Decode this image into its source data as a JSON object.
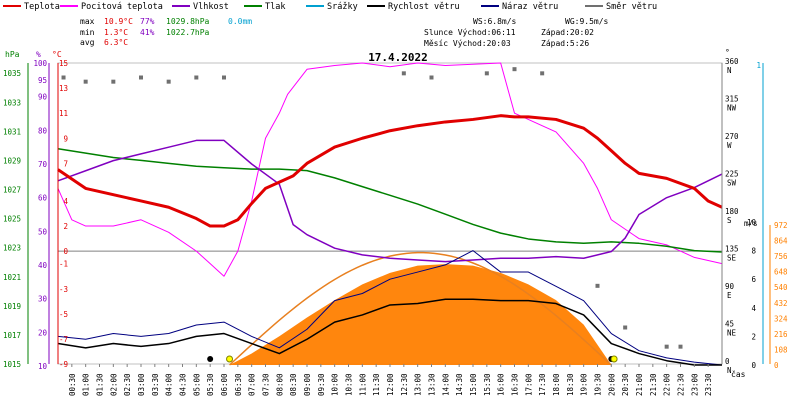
{
  "chart_data": {
    "type": "line",
    "title": "17.4.2022",
    "legend": [
      {
        "name": "Teplota",
        "color": "#e00000"
      },
      {
        "name": "Pocitová teplota",
        "color": "#ff00ff"
      },
      {
        "name": "Vlhkost",
        "color": "#8000c0"
      },
      {
        "name": "Tlak",
        "color": "#008000"
      },
      {
        "name": "Srážky",
        "color": "#00a0d0"
      },
      {
        "name": "Rychlost větru",
        "color": "#000000"
      },
      {
        "name": "Náraz větru",
        "color": "#000080"
      },
      {
        "name": "Směr větru",
        "color": "#707070"
      }
    ],
    "stats": {
      "max_label": "max",
      "min_label": "min",
      "avg_label": "avg",
      "max_temp": "10.9°C",
      "max_hum": "77%",
      "max_press": "1029.8hPa",
      "max_rain": "0.0mm",
      "min_temp": "1.3°C",
      "min_hum": "41%",
      "min_press": "1022.7hPa",
      "avg_temp": "6.3°C"
    },
    "wind_info": {
      "ws": "WS:6.8m/s",
      "wg": "WG:9.5m/s"
    },
    "sun_info": {
      "line1_left": "Slunce Východ:06:11",
      "line1_right": "Západ:20:02",
      "line2_left": "Měsíc  Východ:20:03",
      "line2_right": "Západ:5:26"
    },
    "axes": {
      "hpa_unit": "hPa",
      "pct_unit": "%",
      "degc_unit": "°C",
      "hpa_ticks": [
        1015,
        1017,
        1019,
        1021,
        1023,
        1025,
        1027,
        1029,
        1031,
        1033,
        1035
      ],
      "pct_ticks": [
        10,
        20,
        30,
        40,
        50,
        60,
        70,
        80,
        90,
        95,
        100
      ],
      "pct_ticks_labels": [
        "10",
        "20",
        "30",
        "40",
        "50",
        "60",
        "70",
        "80",
        "90",
        "95",
        "100"
      ],
      "temp_ticks": [
        -9,
        -7,
        -5,
        -3,
        -1,
        0,
        2,
        4,
        7,
        9,
        11,
        13,
        15
      ],
      "deg_unit": "°",
      "dir_ticks": [
        {
          "deg": 0,
          "label": "0",
          "dir": "N"
        },
        {
          "deg": 45,
          "label": "45",
          "dir": "NE"
        },
        {
          "deg": 90,
          "label": "90",
          "dir": "E"
        },
        {
          "deg": 135,
          "label": "135",
          "dir": "SE"
        },
        {
          "deg": 180,
          "label": "180",
          "dir": "S"
        },
        {
          "deg": 225,
          "label": "225",
          "dir": "SW"
        },
        {
          "deg": 270,
          "label": "270",
          "dir": "W"
        },
        {
          "deg": 315,
          "label": "315",
          "dir": "NW"
        },
        {
          "deg": 360,
          "label": "360",
          "dir": "N"
        }
      ],
      "ms_unit": "m/s",
      "ms_ticks": [
        0,
        2,
        4,
        6,
        8,
        10
      ],
      "wm2_ticks": [
        0,
        108,
        216,
        324,
        432,
        540,
        648,
        756,
        864,
        972
      ],
      "mm_ticks": [
        "1"
      ],
      "x_ticks": [
        "00:30",
        "01:00",
        "01:30",
        "02:00",
        "02:30",
        "03:00",
        "03:30",
        "04:00",
        "04:30",
        "05:00",
        "05:30",
        "06:00",
        "06:30",
        "07:00",
        "07:30",
        "08:00",
        "08:30",
        "09:00",
        "09:30",
        "10:00",
        "10:30",
        "11:00",
        "11:30",
        "12:00",
        "12:30",
        "13:00",
        "13:30",
        "14:00",
        "14:30",
        "15:00",
        "15:30",
        "16:00",
        "16:30",
        "17:00",
        "17:30",
        "18:00",
        "18:30",
        "19:00",
        "19:30",
        "20:00",
        "20:30",
        "21:00",
        "21:30",
        "22:00",
        "22:30",
        "23:00",
        "23:30"
      ],
      "x_label": "čas"
    },
    "series_temp": {
      "x": [
        0,
        1,
        2,
        3,
        4,
        5,
        5.5,
        6,
        6.5,
        7,
        7.5,
        8,
        8.5,
        9,
        10,
        11,
        12,
        13,
        14,
        15,
        16,
        16.5,
        17,
        18,
        19,
        19.5,
        20,
        20.5,
        21,
        22,
        23,
        23.5,
        24
      ],
      "y": [
        6.5,
        5,
        4.5,
        4,
        3.5,
        2.6,
        2,
        2,
        2.5,
        3.8,
        5,
        5.5,
        6,
        7,
        8.3,
        9,
        9.6,
        10,
        10.3,
        10.5,
        10.8,
        10.7,
        10.7,
        10.5,
        9.8,
        9,
        8,
        7,
        6.2,
        5.8,
        5,
        4,
        3.5
      ]
    },
    "series_feels": {
      "x": [
        0,
        0.5,
        1,
        2,
        3,
        4,
        5,
        5.5,
        6,
        6.5,
        7,
        7.5,
        8,
        8.3,
        9,
        10,
        11,
        12,
        13,
        14,
        15,
        16,
        16.5,
        17,
        18,
        19,
        19.5,
        20,
        21,
        22,
        23,
        24
      ],
      "y": [
        5,
        2.5,
        2,
        2,
        2.5,
        1.5,
        0,
        -1,
        -2,
        0,
        4,
        9,
        11,
        12.5,
        14.5,
        14.8,
        15,
        14.7,
        15,
        14.8,
        14.9,
        15,
        11,
        10.5,
        9.5,
        7,
        5,
        2.5,
        1,
        0.5,
        -0.5,
        -1
      ]
    },
    "series_humidity": {
      "x": [
        0,
        1,
        2,
        3,
        4,
        5,
        6,
        7,
        8,
        8.5,
        9,
        10,
        11,
        12,
        13,
        14,
        15,
        16,
        17,
        18,
        19,
        20,
        20.5,
        21,
        22,
        23,
        24
      ],
      "y": [
        65,
        68,
        71,
        73,
        75,
        77,
        77,
        70,
        64,
        52,
        49,
        45,
        43,
        42,
        41.5,
        41,
        41.5,
        42,
        42,
        42.5,
        42,
        44,
        48,
        55,
        60,
        63,
        67
      ]
    },
    "series_pressure": {
      "x": [
        0,
        1,
        2,
        3,
        4,
        5,
        6,
        7,
        8,
        9,
        10,
        11,
        12,
        13,
        14,
        15,
        16,
        17,
        18,
        19,
        20,
        21,
        22,
        23,
        24
      ],
      "y": [
        1029.8,
        1029.5,
        1029.2,
        1029,
        1028.8,
        1028.6,
        1028.5,
        1028.4,
        1028.4,
        1028.3,
        1027.8,
        1027.2,
        1026.6,
        1026,
        1025.3,
        1024.6,
        1024,
        1023.6,
        1023.4,
        1023.3,
        1023.4,
        1023.3,
        1023.1,
        1022.8,
        1022.7
      ]
    },
    "series_solar": {
      "x": [
        6.2,
        7,
        8,
        9,
        10,
        11,
        12,
        13,
        14,
        15,
        16,
        17,
        18,
        19,
        20
      ],
      "y": [
        0,
        80,
        200,
        330,
        450,
        560,
        640,
        690,
        700,
        690,
        640,
        560,
        450,
        280,
        0
      ]
    },
    "series_wind": {
      "x": [
        0,
        1,
        2,
        3,
        4,
        5,
        6,
        7,
        8,
        9,
        10,
        11,
        12,
        13,
        14,
        15,
        16,
        17,
        18,
        19,
        20,
        21,
        22,
        23,
        24
      ],
      "y": [
        1.5,
        1.2,
        1.5,
        1.3,
        1.5,
        2,
        2.2,
        1.5,
        0.8,
        1.8,
        3,
        3.5,
        4.2,
        4.3,
        4.6,
        4.6,
        4.5,
        4.5,
        4.3,
        3.5,
        1.5,
        0.8,
        0.3,
        0,
        0
      ]
    },
    "series_gust": {
      "x": [
        0,
        1,
        2,
        3,
        4,
        5,
        6,
        7,
        8,
        9,
        10,
        11,
        12,
        13,
        14,
        15,
        16,
        17,
        18,
        19,
        20,
        21,
        22,
        23,
        24
      ],
      "y": [
        2,
        1.8,
        2.2,
        2,
        2.2,
        2.8,
        3,
        2,
        1.2,
        2.5,
        4.5,
        5,
        6,
        6.5,
        7,
        8,
        6.5,
        6.5,
        5.5,
        4.5,
        2.2,
        1,
        0.5,
        0.2,
        0
      ]
    },
    "series_winddir": {
      "x": [
        0.2,
        1,
        2,
        3,
        4,
        5,
        6,
        12.5,
        13.5,
        15.5,
        16.5,
        17.5,
        19.5,
        20.5,
        22,
        22.5
      ],
      "y": [
        345,
        340,
        340,
        345,
        340,
        345,
        345,
        350,
        345,
        350,
        355,
        350,
        95,
        45,
        22,
        22
      ]
    }
  }
}
